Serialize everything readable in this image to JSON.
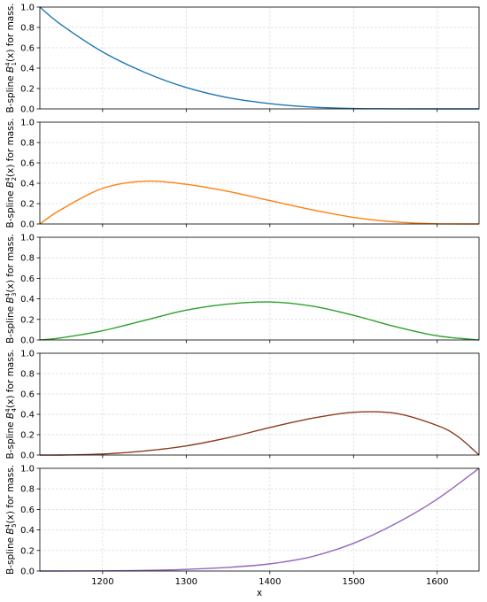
{
  "chart_data": [
    {
      "type": "line",
      "ylabel": "B-spline B_1^4(x) for mass.",
      "ylabel_main": "B-spline ",
      "ylabel_sym": "B",
      "ylabel_sub": "1",
      "ylabel_sup": "4",
      "ylabel_tail": "(x) for mass.",
      "xlim": [
        1125,
        1650
      ],
      "ylim": [
        0.0,
        1.0
      ],
      "yticks": [
        "0.0",
        "0.2",
        "0.4",
        "0.6",
        "0.8",
        "1.0"
      ],
      "grid": true,
      "color": "#1f77b4",
      "x": [
        1125,
        1150,
        1200,
        1250,
        1300,
        1350,
        1400,
        1450,
        1500,
        1550,
        1600,
        1650
      ],
      "y": [
        1.0,
        0.83,
        0.56,
        0.36,
        0.21,
        0.11,
        0.052,
        0.018,
        0.004,
        0.001,
        0.0,
        0.0
      ]
    },
    {
      "type": "line",
      "ylabel": "B-spline B_2^4(x) for mass.",
      "ylabel_main": "B-spline ",
      "ylabel_sym": "B",
      "ylabel_sub": "2",
      "ylabel_sup": "4",
      "ylabel_tail": "(x) for mass.",
      "xlim": [
        1125,
        1650
      ],
      "ylim": [
        0.0,
        1.0
      ],
      "yticks": [
        "0.0",
        "0.2",
        "0.4",
        "0.6",
        "0.8",
        "1.0"
      ],
      "grid": true,
      "color": "#ff7f0e",
      "x": [
        1125,
        1150,
        1200,
        1250,
        1300,
        1350,
        1400,
        1450,
        1500,
        1550,
        1600,
        1650
      ],
      "y": [
        0.0,
        0.14,
        0.35,
        0.42,
        0.39,
        0.32,
        0.23,
        0.14,
        0.065,
        0.02,
        0.002,
        0.0
      ]
    },
    {
      "type": "line",
      "ylabel": "B-spline B_3^4(x) for mass.",
      "ylabel_main": "B-spline ",
      "ylabel_sym": "B",
      "ylabel_sub": "3",
      "ylabel_sup": "4",
      "ylabel_tail": "(x) for mass.",
      "xlim": [
        1125,
        1650
      ],
      "ylim": [
        0.0,
        1.0
      ],
      "yticks": [
        "0.0",
        "0.2",
        "0.4",
        "0.6",
        "0.8",
        "1.0"
      ],
      "grid": true,
      "color": "#2ca02c",
      "x": [
        1125,
        1150,
        1200,
        1250,
        1300,
        1350,
        1400,
        1450,
        1500,
        1550,
        1600,
        1650
      ],
      "y": [
        0.0,
        0.02,
        0.09,
        0.19,
        0.29,
        0.35,
        0.37,
        0.33,
        0.24,
        0.13,
        0.04,
        0.0
      ]
    },
    {
      "type": "line",
      "ylabel": "B-spline B_4^4(x) for mass.",
      "ylabel_main": "B-spline ",
      "ylabel_sym": "B",
      "ylabel_sub": "4",
      "ylabel_sup": "4",
      "ylabel_tail": "(x) for mass.",
      "xlim": [
        1125,
        1650
      ],
      "ylim": [
        0.0,
        1.0
      ],
      "yticks": [
        "0.0",
        "0.2",
        "0.4",
        "0.6",
        "0.8",
        "1.0"
      ],
      "grid": true,
      "color": "#8c3b1f",
      "x": [
        1125,
        1150,
        1200,
        1250,
        1300,
        1350,
        1400,
        1450,
        1500,
        1550,
        1600,
        1625,
        1650
      ],
      "y": [
        0.0,
        0.0,
        0.01,
        0.04,
        0.09,
        0.17,
        0.27,
        0.36,
        0.42,
        0.41,
        0.29,
        0.18,
        0.0
      ]
    },
    {
      "type": "line",
      "ylabel": "B-spline B_5^4(x) for mass.",
      "ylabel_main": "B-spline ",
      "ylabel_sym": "B",
      "ylabel_sub": "5",
      "ylabel_sup": "4",
      "ylabel_tail": "(x) for mass.",
      "xlabel": "x",
      "xlim": [
        1125,
        1650
      ],
      "ylim": [
        0.0,
        1.0
      ],
      "yticks": [
        "0.0",
        "0.2",
        "0.4",
        "0.6",
        "0.8",
        "1.0"
      ],
      "xticks": [
        "1200",
        "1300",
        "1400",
        "1500",
        "1600"
      ],
      "grid": true,
      "color": "#9467bd",
      "x": [
        1125,
        1200,
        1250,
        1300,
        1350,
        1400,
        1450,
        1500,
        1550,
        1600,
        1650
      ],
      "y": [
        0.0,
        0.002,
        0.006,
        0.016,
        0.035,
        0.07,
        0.14,
        0.27,
        0.46,
        0.7,
        1.0
      ]
    }
  ]
}
